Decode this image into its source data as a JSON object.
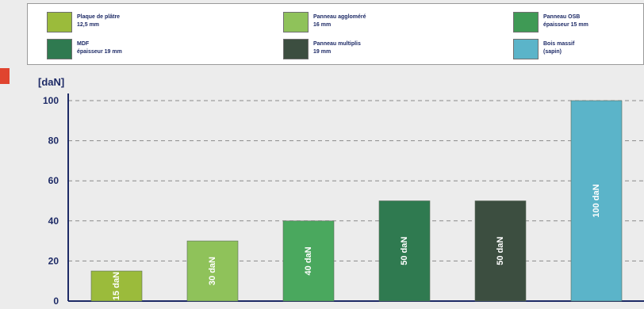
{
  "legend": {
    "items": [
      {
        "label": "Plaque de plâtre\n12,5 mm",
        "color": "#9bbb3b"
      },
      {
        "label": "Panneau aggloméré\n16 mm",
        "color": "#8fc25a"
      },
      {
        "label": "Panneau OSB\népaisseur 15 mm",
        "color": "#3f9a55"
      },
      {
        "label": "MDF\népaisseur 19 mm",
        "color": "#2f7a50"
      },
      {
        "label": "Panneau multiplis\n19 mm",
        "color": "#3c4e40"
      },
      {
        "label": "Bois massif\n(sapin)",
        "color": "#5bb4c9"
      }
    ]
  },
  "chart_data": {
    "type": "bar",
    "ylabel": "[daN]",
    "ylim": [
      0,
      100
    ],
    "yticks": [
      0,
      20,
      40,
      60,
      80,
      100
    ],
    "grid": true,
    "categories": [
      "Plaque de plâtre 12,5 mm",
      "Panneau aggloméré 16 mm",
      "Panneau OSB épaisseur 15 mm",
      "MDF épaisseur 19 mm",
      "Panneau multiplis 19 mm",
      "Bois massif (sapin)"
    ],
    "values": [
      15,
      30,
      40,
      50,
      50,
      100
    ],
    "bar_labels": [
      "15 daN",
      "30 daN",
      "40 daN",
      "50 daN",
      "50 daN",
      "100 daN"
    ],
    "colors": [
      "#9bbb3b",
      "#8fc25a",
      "#4aa85e",
      "#2f7a50",
      "#3c4e40",
      "#5bb4c9"
    ]
  }
}
